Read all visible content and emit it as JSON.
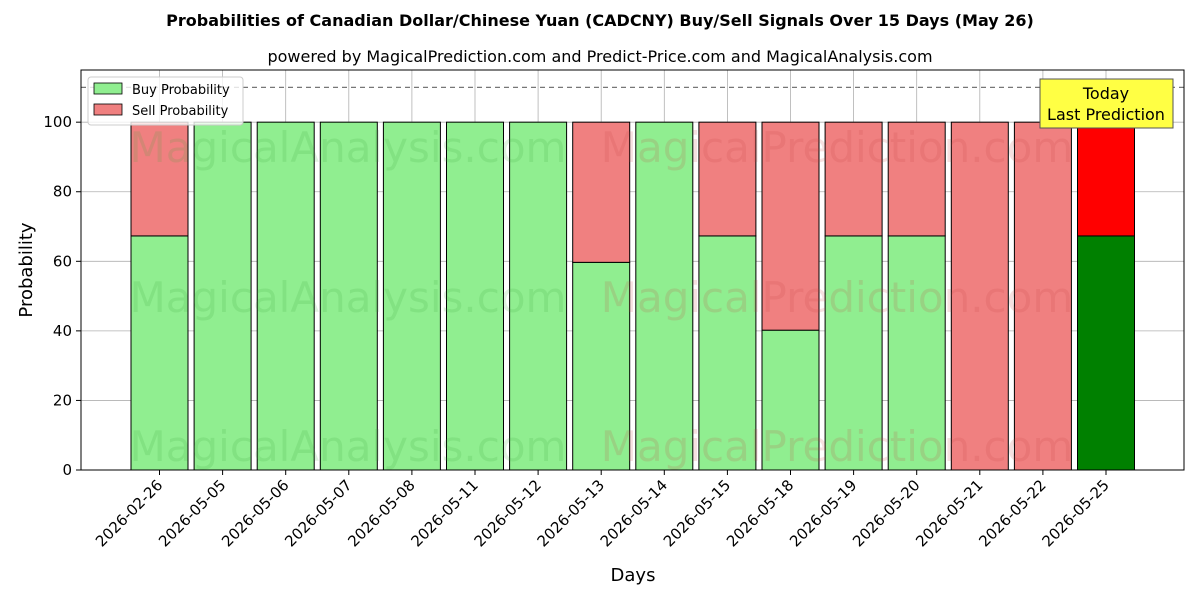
{
  "chart_data": {
    "type": "bar",
    "stacked": true,
    "title": "Probabilities of Canadian Dollar/Chinese Yuan (CADCNY) Buy/Sell Signals Over 15 Days (May 26)",
    "subtitle": "powered by MagicalPrediction.com and Predict-Price.com and MagicalAnalysis.com",
    "xlabel": "Days",
    "ylabel": "Probability",
    "ylim": [
      0,
      115
    ],
    "yticks": [
      0,
      20,
      40,
      60,
      80,
      100
    ],
    "grid": true,
    "reference_line": 110,
    "legend_position": "top-left",
    "categories": [
      "2026-02-26",
      "2026-05-05",
      "2026-05-06",
      "2026-05-07",
      "2026-05-08",
      "2026-05-11",
      "2026-05-12",
      "2026-05-13",
      "2026-05-14",
      "2026-05-15",
      "2026-05-18",
      "2026-05-19",
      "2026-05-20",
      "2026-05-21",
      "2026-05-22",
      "2026-05-25"
    ],
    "series": [
      {
        "name": "Buy Probability",
        "color": "#90ee90",
        "highlight_color": "#008000",
        "values": [
          67.3,
          100,
          100,
          100,
          100,
          100,
          100,
          59.7,
          100,
          67.3,
          40.2,
          67.3,
          67.3,
          0,
          0,
          67.3
        ]
      },
      {
        "name": "Sell Probability",
        "color": "#f08080",
        "highlight_color": "#ff0000",
        "values": [
          32.7,
          0,
          0,
          0,
          0,
          0,
          0,
          40.3,
          0,
          32.7,
          59.8,
          32.7,
          32.7,
          100,
          100,
          32.7
        ]
      }
    ],
    "highlight_index": 15,
    "annotation": {
      "lines": [
        "Today",
        "Last Prediction"
      ],
      "background": "#ffff44"
    },
    "watermarks": [
      "MagicalAnalysis.com",
      "MagicalPrediction.com"
    ]
  }
}
